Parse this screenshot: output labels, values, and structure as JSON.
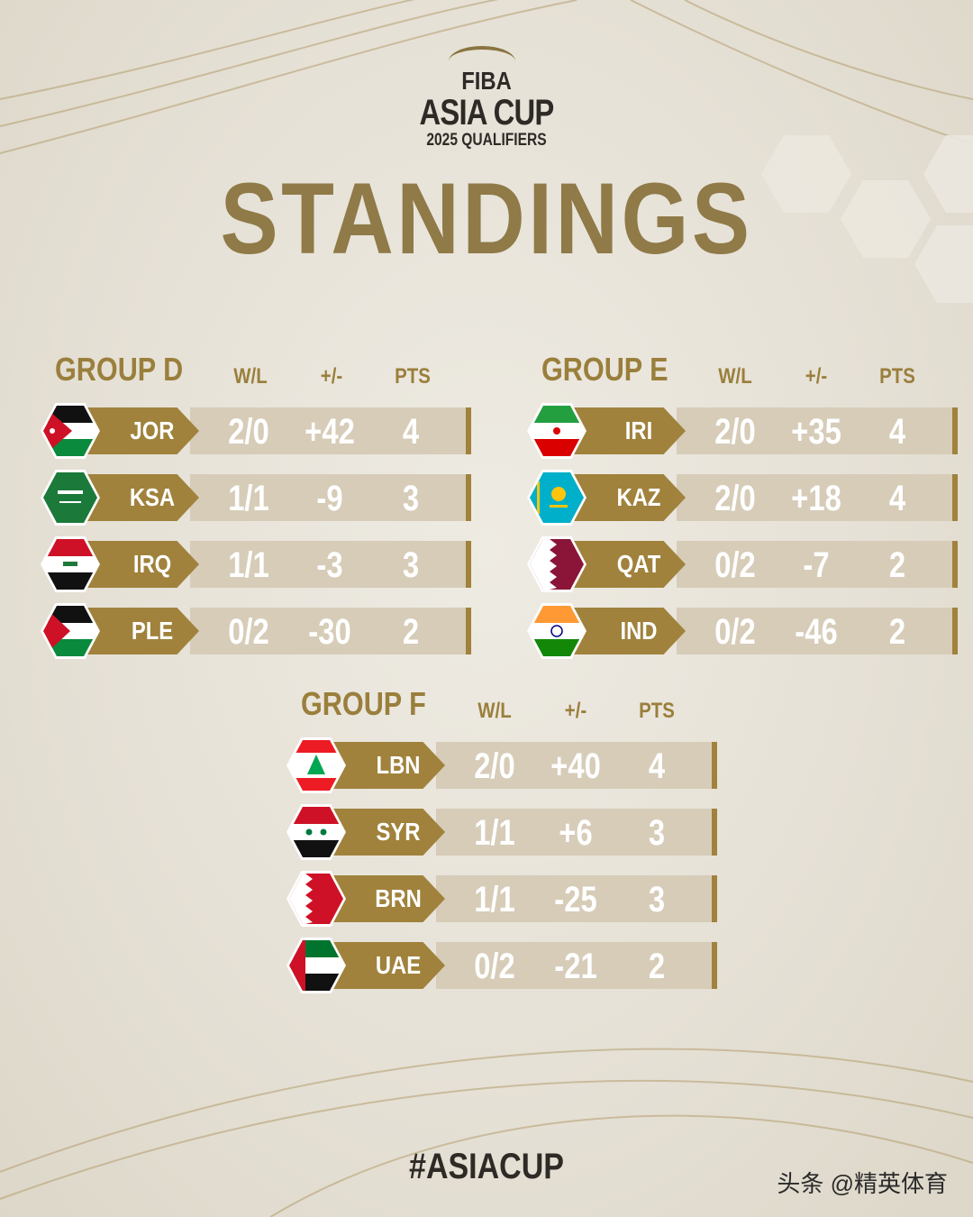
{
  "header": {
    "logo_line1": "FIBA",
    "logo_line2": "ASIA CUP",
    "logo_line3": "2025 QUALIFIERS",
    "title": "STANDINGS"
  },
  "columns": {
    "wl": "W/L",
    "diff": "+/-",
    "pts": "PTS"
  },
  "colors": {
    "gold": "#a0823c",
    "bar": "#d6ccb8",
    "title": "#8f7a48",
    "background": "#e6e1d6"
  },
  "groups": [
    {
      "name": "GROUP D",
      "rows": [
        {
          "team": "JOR",
          "flag": "jordan-flag-icon",
          "wl": "2/0",
          "diff": "+42",
          "pts": "4"
        },
        {
          "team": "KSA",
          "flag": "saudi-arabia-flag-icon",
          "wl": "1/1",
          "diff": "-9",
          "pts": "3"
        },
        {
          "team": "IRQ",
          "flag": "iraq-flag-icon",
          "wl": "1/1",
          "diff": "-3",
          "pts": "3"
        },
        {
          "team": "PLE",
          "flag": "palestine-flag-icon",
          "wl": "0/2",
          "diff": "-30",
          "pts": "2"
        }
      ]
    },
    {
      "name": "GROUP E",
      "rows": [
        {
          "team": "IRI",
          "flag": "iran-flag-icon",
          "wl": "2/0",
          "diff": "+35",
          "pts": "4"
        },
        {
          "team": "KAZ",
          "flag": "kazakhstan-flag-icon",
          "wl": "2/0",
          "diff": "+18",
          "pts": "4"
        },
        {
          "team": "QAT",
          "flag": "qatar-flag-icon",
          "wl": "0/2",
          "diff": "-7",
          "pts": "2"
        },
        {
          "team": "IND",
          "flag": "india-flag-icon",
          "wl": "0/2",
          "diff": "-46",
          "pts": "2"
        }
      ]
    },
    {
      "name": "GROUP F",
      "rows": [
        {
          "team": "LBN",
          "flag": "lebanon-flag-icon",
          "wl": "2/0",
          "diff": "+40",
          "pts": "4"
        },
        {
          "team": "SYR",
          "flag": "syria-flag-icon",
          "wl": "1/1",
          "diff": "+6",
          "pts": "3"
        },
        {
          "team": "BRN",
          "flag": "bahrain-flag-icon",
          "wl": "1/1",
          "diff": "-25",
          "pts": "3"
        },
        {
          "team": "UAE",
          "flag": "uae-flag-icon",
          "wl": "0/2",
          "diff": "-21",
          "pts": "2"
        }
      ]
    }
  ],
  "footer": {
    "hashtag": "#ASIACUP",
    "watermark": "头条 @精英体育"
  }
}
